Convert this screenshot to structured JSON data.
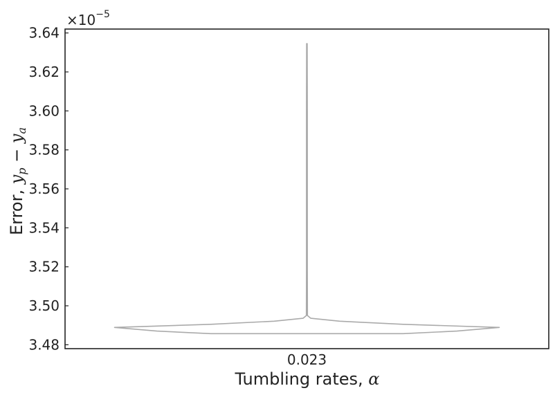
{
  "chart_data": {
    "type": "violin",
    "categories": [
      "0.023"
    ],
    "xlabel": {
      "text": "Tumbling rates, ",
      "math": "α"
    },
    "ylabel": {
      "text": "Error, ",
      "math": "y",
      "sub1": "p",
      "minus": " − ",
      "math2": "y",
      "sub2": "a"
    },
    "y_offset": {
      "base": "×10",
      "exponent": "−5"
    },
    "ylim": [
      3.478,
      3.642
    ],
    "yticks": [
      3.48,
      3.5,
      3.52,
      3.54,
      3.56,
      3.58,
      3.6,
      3.62,
      3.64
    ],
    "ytick_labels": [
      "3.48",
      "3.50",
      "3.52",
      "3.54",
      "3.56",
      "3.58",
      "3.60",
      "3.62",
      "3.64"
    ],
    "grid": false,
    "color": "#aaaaaa",
    "violin": {
      "min": 3.4857,
      "max": 3.6345,
      "mode": 3.4889,
      "profile": [
        {
          "y": 3.4857,
          "w": 0.5
        },
        {
          "y": 3.487,
          "w": 0.78
        },
        {
          "y": 3.4889,
          "w": 1.0
        },
        {
          "y": 3.4905,
          "w": 0.5
        },
        {
          "y": 3.4921,
          "w": 0.17
        },
        {
          "y": 3.4936,
          "w": 0.02
        },
        {
          "y": 3.495,
          "w": 0.003
        },
        {
          "y": 3.52,
          "w": 0.002
        },
        {
          "y": 3.6,
          "w": 0.002
        },
        {
          "y": 3.6345,
          "w": 0.0015
        }
      ]
    }
  }
}
